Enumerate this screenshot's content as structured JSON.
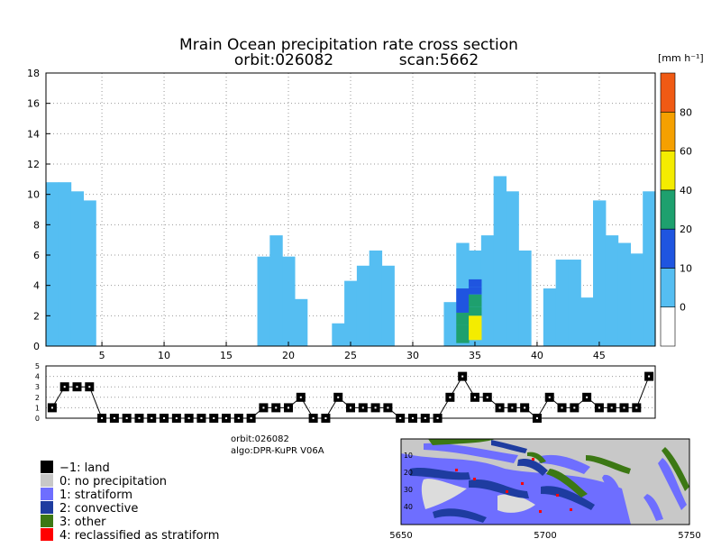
{
  "title": {
    "line1": "Mrain Ocean precipitation rate cross section",
    "orbit": "orbit:026082",
    "scan": "scan:5662"
  },
  "colorbar": {
    "unit": "[mm h⁻¹]",
    "labels": [
      "0",
      "10",
      "20",
      "40",
      "60",
      "80"
    ],
    "colors": [
      "#ffffff",
      "#55bef2",
      "#1f55e0",
      "#1ea06e",
      "#f4ec00",
      "#f5a000",
      "#f05a14"
    ]
  },
  "chart_data": [
    {
      "type": "heatmap",
      "title": "Mrain Ocean precipitation rate cross section",
      "xlabel": "",
      "ylabel": "",
      "xlim": [
        1,
        49
      ],
      "ylim": [
        0,
        18
      ],
      "xticks": [
        "5",
        "10",
        "15",
        "20",
        "25",
        "30",
        "35",
        "40",
        "45"
      ],
      "yticks": [
        "0",
        "2",
        "4",
        "6",
        "8",
        "10",
        "12",
        "14",
        "16",
        "18"
      ],
      "grid": true,
      "columns": [
        {
          "x": 1,
          "top": 10.8
        },
        {
          "x": 2,
          "top": 10.8
        },
        {
          "x": 3,
          "top": 10.2
        },
        {
          "x": 4,
          "top": 9.6
        },
        {
          "x": 18,
          "top": 5.9
        },
        {
          "x": 19,
          "top": 7.3
        },
        {
          "x": 20,
          "top": 5.9
        },
        {
          "x": 21,
          "top": 3.1
        },
        {
          "x": 24,
          "top": 1.5
        },
        {
          "x": 25,
          "top": 4.3
        },
        {
          "x": 26,
          "top": 5.3
        },
        {
          "x": 27,
          "top": 6.3
        },
        {
          "x": 28,
          "top": 5.3
        },
        {
          "x": 33,
          "top": 2.9
        },
        {
          "x": 34,
          "top": 6.8
        },
        {
          "x": 35,
          "top": 6.3
        },
        {
          "x": 36,
          "top": 7.3
        },
        {
          "x": 37,
          "top": 11.2
        },
        {
          "x": 38,
          "top": 10.2
        },
        {
          "x": 39,
          "top": 6.3
        },
        {
          "x": 41,
          "top": 3.8
        },
        {
          "x": 42,
          "top": 5.7
        },
        {
          "x": 43,
          "top": 5.7
        },
        {
          "x": 44,
          "top": 3.2
        },
        {
          "x": 45,
          "top": 9.6
        },
        {
          "x": 46,
          "top": 7.3
        },
        {
          "x": 47,
          "top": 6.8
        },
        {
          "x": 48,
          "top": 6.1
        },
        {
          "x": 49,
          "top": 10.2
        }
      ],
      "cells": [
        {
          "x": 34,
          "y0": 2.2,
          "y1": 3.8,
          "level": 2
        },
        {
          "x": 35,
          "y0": 3.9,
          "y1": 4.4,
          "level": 2
        },
        {
          "x": 35,
          "y0": 3.4,
          "y1": 3.9,
          "level": 2
        },
        {
          "x": 34,
          "y0": 0.2,
          "y1": 1.4,
          "level": 3
        },
        {
          "x": 34,
          "y0": 1.4,
          "y1": 2.2,
          "level": 3
        },
        {
          "x": 35,
          "y0": 2.6,
          "y1": 3.4,
          "level": 3
        },
        {
          "x": 35,
          "y0": 2.0,
          "y1": 2.6,
          "level": 3
        },
        {
          "x": 35,
          "y0": 0.4,
          "y1": 2.0,
          "level": 4
        }
      ]
    },
    {
      "type": "line",
      "title": "",
      "xlim": [
        1,
        49
      ],
      "ylim": [
        0,
        5
      ],
      "yticks": [
        "0",
        "1",
        "2",
        "3",
        "4",
        "5"
      ],
      "x": [
        1,
        2,
        3,
        4,
        5,
        6,
        7,
        8,
        9,
        10,
        11,
        12,
        13,
        14,
        15,
        16,
        17,
        18,
        19,
        20,
        21,
        22,
        23,
        24,
        25,
        26,
        27,
        28,
        29,
        30,
        31,
        32,
        33,
        34,
        35,
        36,
        37,
        38,
        39,
        40,
        41,
        42,
        43,
        44,
        45,
        46,
        47,
        48,
        49
      ],
      "values": [
        1,
        3,
        3,
        3,
        0,
        0,
        0,
        0,
        0,
        0,
        0,
        0,
        0,
        0,
        0,
        0,
        0,
        1,
        1,
        1,
        2,
        0,
        0,
        2,
        1,
        1,
        1,
        1,
        0,
        0,
        0,
        0,
        2,
        4,
        2,
        2,
        1,
        1,
        1,
        0,
        2,
        1,
        1,
        2,
        1,
        1,
        1,
        1,
        4
      ]
    }
  ],
  "info": {
    "orbit": "orbit:026082",
    "algo": "algo:DPR-KuPR V06A"
  },
  "legend": [
    {
      "label": "−1: land",
      "color": "#000000"
    },
    {
      "label": "0: no precipitation",
      "color": "#c8c8c8"
    },
    {
      "label": "1: stratiform",
      "color": "#6e6eff"
    },
    {
      "label": "2: convective",
      "color": "#1e3ca0"
    },
    {
      "label": "3: other",
      "color": "#3c7814"
    },
    {
      "label": "4: reclassified as stratiform",
      "color": "#ff0000"
    }
  ],
  "map": {
    "xticks": [
      "5650",
      "5700",
      "5750"
    ],
    "yticks": [
      "10",
      "20",
      "30",
      "40"
    ]
  }
}
